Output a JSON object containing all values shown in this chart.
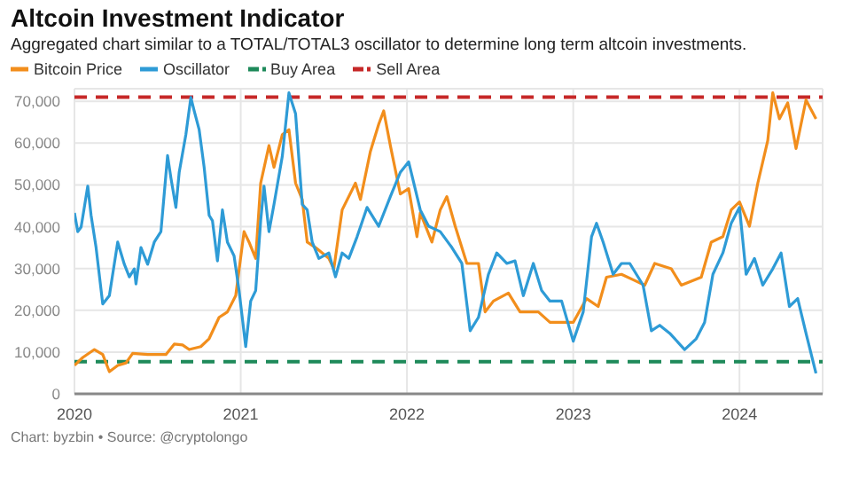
{
  "chart_data": {
    "type": "line",
    "title": "Altcoin Investment Indicator",
    "subtitle": "Aggregated chart similar to a TOTAL/TOTAL3 oscillator to determine long term altcoin investments.",
    "series": [
      {
        "name": "Bitcoin Price",
        "color": "#f28e1c",
        "x": [
          2020.0,
          2020.05,
          2020.12,
          2020.17,
          2020.21,
          2020.26,
          2020.31,
          2020.35,
          2020.44,
          2020.55,
          2020.6,
          2020.65,
          2020.69,
          2020.76,
          2020.81,
          2020.87,
          2020.92,
          2020.97,
          2021.02,
          2021.05,
          2021.09,
          2021.12,
          2021.17,
          2021.2,
          2021.25,
          2021.29,
          2021.33,
          2021.37,
          2021.4,
          2021.45,
          2021.53,
          2021.56,
          2021.61,
          2021.69,
          2021.72,
          2021.78,
          2021.83,
          2021.86,
          2021.9,
          2021.96,
          2022.01,
          2022.06,
          2022.08,
          2022.15,
          2022.2,
          2022.24,
          2022.29,
          2022.36,
          2022.43,
          2022.47,
          2022.52,
          2022.61,
          2022.68,
          2022.79,
          2022.86,
          2023.0,
          2023.08,
          2023.15,
          2023.2,
          2023.29,
          2023.36,
          2023.43,
          2023.49,
          2023.59,
          2023.65,
          2023.77,
          2023.83,
          2023.9,
          2023.95,
          2024.0,
          2024.06,
          2024.11,
          2024.17,
          2024.2,
          2024.24,
          2024.29,
          2024.34,
          2024.4,
          2024.46
        ],
        "values": [
          6800,
          8700,
          10600,
          9400,
          5300,
          6800,
          7400,
          9700,
          9400,
          9400,
          11900,
          11700,
          10600,
          11300,
          13200,
          18300,
          19600,
          23500,
          38800,
          36300,
          32400,
          50400,
          59400,
          54200,
          62000,
          63200,
          50400,
          46500,
          36300,
          35000,
          32400,
          29900,
          44000,
          50400,
          46500,
          58000,
          64500,
          67700,
          59400,
          47800,
          49100,
          37600,
          43300,
          36300,
          44000,
          47200,
          40100,
          31200,
          31200,
          19600,
          22200,
          24100,
          19600,
          19600,
          17100,
          17100,
          22800,
          20900,
          27900,
          28600,
          27300,
          26000,
          31200,
          29900,
          26000,
          27900,
          36300,
          37600,
          44000,
          45900,
          40100,
          50400,
          60600,
          72000,
          65800,
          69600,
          58700,
          70300,
          65800
        ]
      },
      {
        "name": "Oscillator",
        "color": "#2e9bd6",
        "x": [
          2020.0,
          2020.02,
          2020.04,
          2020.08,
          2020.1,
          2020.13,
          2020.17,
          2020.21,
          2020.26,
          2020.3,
          2020.33,
          2020.36,
          2020.37,
          2020.4,
          2020.44,
          2020.48,
          2020.52,
          2020.56,
          2020.58,
          2020.61,
          2020.63,
          2020.67,
          2020.7,
          2020.72,
          2020.75,
          2020.78,
          2020.81,
          2020.83,
          2020.86,
          2020.89,
          2020.92,
          2020.96,
          2020.99,
          2021.03,
          2021.06,
          2021.09,
          2021.12,
          2021.14,
          2021.17,
          2021.2,
          2021.25,
          2021.29,
          2021.33,
          2021.37,
          2021.4,
          2021.43,
          2021.47,
          2021.53,
          2021.57,
          2021.61,
          2021.65,
          2021.7,
          2021.76,
          2021.83,
          2021.9,
          2021.96,
          2022.01,
          2022.08,
          2022.13,
          2022.2,
          2022.27,
          2022.33,
          2022.38,
          2022.43,
          2022.49,
          2022.54,
          2022.6,
          2022.65,
          2022.7,
          2022.76,
          2022.81,
          2022.86,
          2022.93,
          2023.0,
          2023.06,
          2023.11,
          2023.14,
          2023.18,
          2023.24,
          2023.29,
          2023.34,
          2023.42,
          2023.47,
          2023.52,
          2023.58,
          2023.67,
          2023.74,
          2023.79,
          2023.84,
          2023.9,
          2023.95,
          2024.0,
          2024.04,
          2024.09,
          2024.14,
          2024.2,
          2024.25,
          2024.3,
          2024.35,
          2024.4,
          2024.46
        ],
        "values": [
          43300,
          38800,
          39900,
          49700,
          42700,
          35000,
          21500,
          23500,
          36300,
          31000,
          28000,
          29900,
          26300,
          35000,
          31000,
          36300,
          38800,
          57000,
          51700,
          44600,
          53000,
          62000,
          70900,
          67700,
          63200,
          54200,
          42700,
          41400,
          31800,
          44000,
          36300,
          33000,
          24700,
          11300,
          22200,
          24700,
          41400,
          49700,
          38800,
          45300,
          56800,
          72000,
          67000,
          45300,
          44000,
          36300,
          32400,
          33700,
          28000,
          33700,
          32400,
          37600,
          44600,
          40100,
          47200,
          53000,
          55500,
          44000,
          40100,
          38800,
          35000,
          31200,
          15100,
          18300,
          28600,
          33700,
          31200,
          31800,
          23500,
          31200,
          24700,
          22200,
          22200,
          12600,
          19600,
          37600,
          40800,
          36300,
          28600,
          31200,
          31200,
          26000,
          15100,
          16400,
          14500,
          10600,
          13200,
          17100,
          28600,
          33700,
          40800,
          44600,
          28600,
          32400,
          26000,
          29900,
          33700,
          20900,
          22800,
          14500,
          4900
        ]
      }
    ],
    "ref_lines": [
      {
        "axis": "y",
        "value": 7700,
        "label": "Buy Area",
        "color": "#1e8a5a",
        "line_style": "dashed"
      },
      {
        "axis": "y",
        "value": 71000,
        "label": "Sell Area",
        "color": "#c62828",
        "line_style": "dashed"
      }
    ],
    "xlim": [
      2020,
      2024.5
    ],
    "xticks": [
      2020,
      2021,
      2022,
      2023,
      2024
    ],
    "ylim": [
      0,
      73000
    ],
    "yticks": [
      0,
      {
        "value": 10000,
        "label": "10,000"
      },
      {
        "value": 20000,
        "label": "20,000"
      },
      {
        "value": 30000,
        "label": "30,000"
      },
      {
        "value": 40000,
        "label": "40,000"
      },
      {
        "value": 50000,
        "label": "50,000"
      },
      {
        "value": 60000,
        "label": "60,000"
      },
      {
        "value": 70000,
        "label": "70,000"
      }
    ],
    "grid": true,
    "legend": "top left",
    "marker": "none",
    "line_style": "solid",
    "annotations": [
      "Chart: byzbin • Source: @cryptolongo"
    ]
  }
}
